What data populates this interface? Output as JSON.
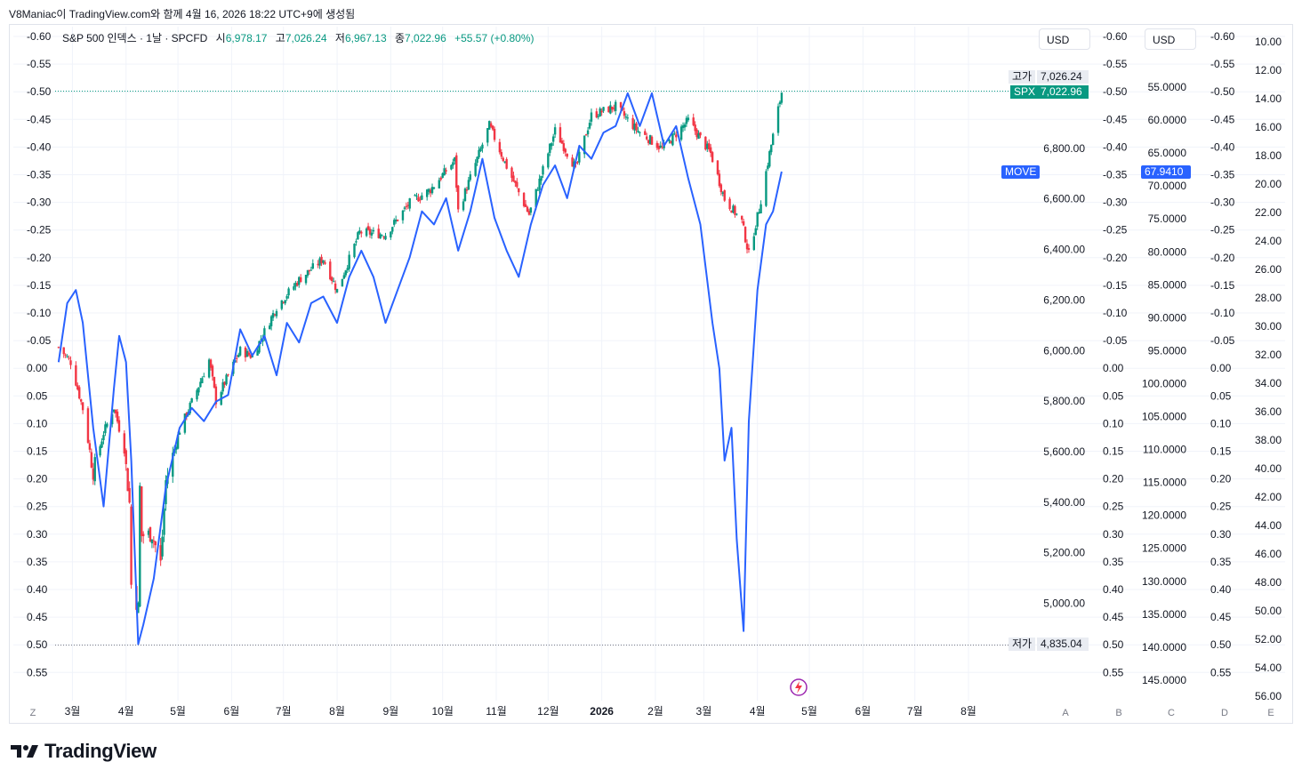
{
  "header_text": "V8Maniac이 TradingView.com와 함께 4월 16, 2026 18:22 UTC+9에 생성됨",
  "legend": {
    "symbol": "S&P 500 인덱스 · 1날 · SPCFD",
    "open_label": "시",
    "open": "6,978.17",
    "high_label": "고",
    "high": "7,026.24",
    "low_label": "저",
    "low": "6,967.13",
    "close_label": "종",
    "close": "7,022.96",
    "change": "+55.57 (+0.80%)"
  },
  "currency_buttons": [
    "USD",
    "USD"
  ],
  "tags": {
    "high_label": "고가",
    "high_value": "7,026.24",
    "spx_label": "SPX",
    "spx_value": "7,022.96",
    "low_label": "저가",
    "low_value": "4,835.04",
    "move_label": "MOVE",
    "move_value": "67.9410"
  },
  "footer": {
    "brand": "TradingView"
  },
  "colors": {
    "up": "#089981",
    "down": "#f23645",
    "move_line": "#2962ff",
    "grid": "#f0f3fa",
    "text": "#131722"
  },
  "chart_data": {
    "type": "candlestick+line",
    "x_ticks": [
      "3월",
      "4월",
      "5월",
      "6월",
      "7월",
      "8월",
      "9월",
      "10월",
      "11월",
      "12월",
      "2026",
      "2월",
      "3월",
      "4월",
      "5월",
      "6월",
      "7월",
      "8월"
    ],
    "corner_labels": [
      "Z",
      "A",
      "B",
      "C",
      "D",
      "E"
    ],
    "percent_axis_ticks": [
      "-0.60",
      "-0.55",
      "-0.50",
      "-0.45",
      "-0.40",
      "-0.35",
      "-0.30",
      "-0.25",
      "-0.20",
      "-0.15",
      "-0.10",
      "-0.05",
      "0.00",
      "0.05",
      "0.10",
      "0.15",
      "0.20",
      "0.25",
      "0.30",
      "0.35",
      "0.40",
      "0.45",
      "0.50",
      "0.55"
    ],
    "spx_axis_ticks": [
      "6,800.00",
      "6,600.00",
      "6,400.00",
      "6,200.00",
      "6,000.00",
      "5,800.00",
      "5,600.00",
      "5,400.00",
      "5,200.00",
      "5,000.00"
    ],
    "move_axis_ticks": [
      "55.0000",
      "60.0000",
      "65.0000",
      "70.0000",
      "75.0000",
      "80.0000",
      "85.0000",
      "90.0000",
      "95.0000",
      "100.0000",
      "105.0000",
      "110.0000",
      "115.0000",
      "120.0000",
      "125.0000",
      "130.0000",
      "135.0000",
      "140.0000",
      "145.0000"
    ],
    "far_axis_ticks": [
      "10.00",
      "12.00",
      "14.00",
      "16.00",
      "18.00",
      "20.00",
      "22.00",
      "24.00",
      "26.00",
      "28.00",
      "30.00",
      "32.00",
      "34.00",
      "36.00",
      "38.00",
      "40.00",
      "42.00",
      "44.00",
      "46.00",
      "48.00",
      "50.00",
      "52.00",
      "54.00",
      "56.00"
    ],
    "spx_range": [
      4700,
      7100
    ],
    "move_range": [
      50,
      150
    ],
    "spx_high": 7026.24,
    "spx_low": 4835.04,
    "spx_last": 7022.96,
    "move_last": 67.941,
    "spx_close_series": [
      [
        "2025-02-21",
        6013
      ],
      [
        "2025-02-28",
        5955
      ],
      [
        "2025-03-07",
        5770
      ],
      [
        "2025-03-13",
        5521
      ],
      [
        "2025-03-19",
        5675
      ],
      [
        "2025-03-25",
        5776
      ],
      [
        "2025-03-31",
        5611
      ],
      [
        "2025-04-03",
        5396
      ],
      [
        "2025-04-04",
        5074
      ],
      [
        "2025-04-08",
        4982
      ],
      [
        "2025-04-09",
        5457
      ],
      [
        "2025-04-10",
        5268
      ],
      [
        "2025-04-16",
        5275
      ],
      [
        "2025-04-21",
        5158
      ],
      [
        "2025-04-24",
        5484
      ],
      [
        "2025-05-02",
        5686
      ],
      [
        "2025-05-12",
        5844
      ],
      [
        "2025-05-19",
        5963
      ],
      [
        "2025-05-23",
        5802
      ],
      [
        "2025-06-06",
        6000
      ],
      [
        "2025-06-13",
        5977
      ],
      [
        "2025-06-27",
        6173
      ],
      [
        "2025-07-10",
        6280
      ],
      [
        "2025-07-24",
        6363
      ],
      [
        "2025-08-01",
        6238
      ],
      [
        "2025-08-14",
        6468
      ],
      [
        "2025-08-29",
        6460
      ],
      [
        "2025-09-12",
        6584
      ],
      [
        "2025-09-24",
        6637
      ],
      [
        "2025-10-08",
        6753
      ],
      [
        "2025-10-10",
        6552
      ],
      [
        "2025-10-28",
        6890
      ],
      [
        "2025-11-07",
        6728
      ],
      [
        "2025-11-20",
        6538
      ],
      [
        "2025-12-05",
        6870
      ],
      [
        "2025-12-17",
        6721
      ],
      [
        "2025-12-26",
        6930
      ],
      [
        "2026-01-09",
        6966
      ],
      [
        "2026-01-21",
        6875
      ],
      [
        "2026-02-05",
        6798
      ],
      [
        "2026-02-20",
        6910
      ],
      [
        "2026-03-05",
        6780
      ],
      [
        "2026-03-13",
        6600
      ],
      [
        "2026-03-23",
        6510
      ],
      [
        "2026-03-27",
        6380
      ],
      [
        "2026-04-02",
        6560
      ],
      [
        "2026-04-08",
        6780
      ],
      [
        "2026-04-15",
        7023
      ]
    ],
    "move_series": [
      [
        "2025-02-21",
        97
      ],
      [
        "2025-02-26",
        88
      ],
      [
        "2025-03-03",
        86
      ],
      [
        "2025-03-07",
        91
      ],
      [
        "2025-03-13",
        107
      ],
      [
        "2025-03-19",
        119
      ],
      [
        "2025-03-25",
        101
      ],
      [
        "2025-03-28",
        93
      ],
      [
        "2025-04-01",
        97
      ],
      [
        "2025-04-04",
        112
      ],
      [
        "2025-04-08",
        140
      ],
      [
        "2025-04-11",
        137
      ],
      [
        "2025-04-17",
        130
      ],
      [
        "2025-04-24",
        116
      ],
      [
        "2025-05-02",
        107
      ],
      [
        "2025-05-09",
        104
      ],
      [
        "2025-05-16",
        106
      ],
      [
        "2025-05-23",
        103
      ],
      [
        "2025-05-30",
        102
      ],
      [
        "2025-06-06",
        92
      ],
      [
        "2025-06-13",
        96
      ],
      [
        "2025-06-20",
        93
      ],
      [
        "2025-06-27",
        99
      ],
      [
        "2025-07-03",
        91
      ],
      [
        "2025-07-10",
        94
      ],
      [
        "2025-07-17",
        88
      ],
      [
        "2025-07-24",
        87
      ],
      [
        "2025-08-01",
        91
      ],
      [
        "2025-08-08",
        84
      ],
      [
        "2025-08-15",
        80
      ],
      [
        "2025-08-22",
        84
      ],
      [
        "2025-08-29",
        91
      ],
      [
        "2025-09-05",
        86
      ],
      [
        "2025-09-12",
        81
      ],
      [
        "2025-09-19",
        74
      ],
      [
        "2025-09-26",
        76
      ],
      [
        "2025-10-03",
        72
      ],
      [
        "2025-10-10",
        80
      ],
      [
        "2025-10-17",
        74
      ],
      [
        "2025-10-24",
        66
      ],
      [
        "2025-10-31",
        75
      ],
      [
        "2025-11-07",
        80
      ],
      [
        "2025-11-14",
        84
      ],
      [
        "2025-11-21",
        76
      ],
      [
        "2025-11-28",
        70
      ],
      [
        "2025-12-05",
        67
      ],
      [
        "2025-12-12",
        72
      ],
      [
        "2025-12-19",
        64
      ],
      [
        "2025-12-26",
        66
      ],
      [
        "2026-01-02",
        62
      ],
      [
        "2026-01-09",
        61
      ],
      [
        "2026-01-16",
        56
      ],
      [
        "2026-01-23",
        61
      ],
      [
        "2026-01-30",
        56
      ],
      [
        "2026-02-06",
        64
      ],
      [
        "2026-02-13",
        61
      ],
      [
        "2026-02-20",
        69
      ],
      [
        "2026-02-27",
        76
      ],
      [
        "2026-03-06",
        91
      ],
      [
        "2026-03-10",
        98
      ],
      [
        "2026-03-13",
        112
      ],
      [
        "2026-03-17",
        107
      ],
      [
        "2026-03-20",
        124
      ],
      [
        "2026-03-24",
        138
      ],
      [
        "2026-03-27",
        106
      ],
      [
        "2026-04-01",
        86
      ],
      [
        "2026-04-06",
        76
      ],
      [
        "2026-04-10",
        74
      ],
      [
        "2026-04-15",
        67.941
      ]
    ]
  }
}
